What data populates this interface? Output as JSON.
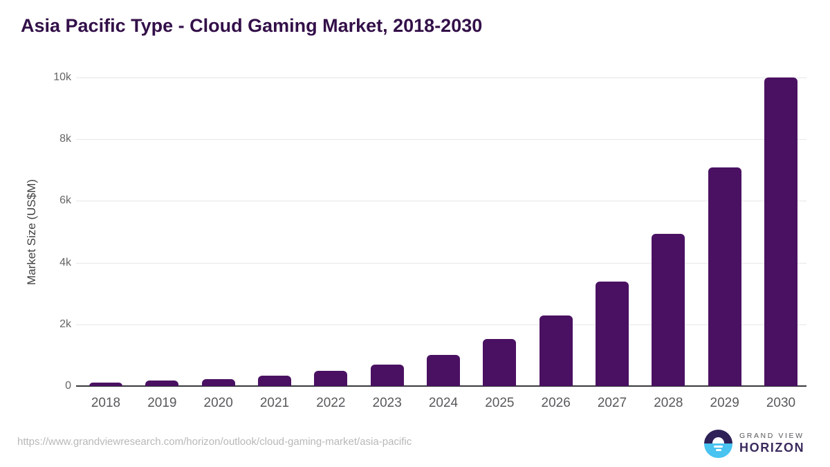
{
  "title": "Asia Pacific Type - Cloud Gaming Market, 2018-2030",
  "chart_data": {
    "type": "bar",
    "title": "Asia Pacific Type - Cloud Gaming Market, 2018-2030",
    "categories": [
      "2018",
      "2019",
      "2020",
      "2021",
      "2022",
      "2023",
      "2024",
      "2025",
      "2026",
      "2027",
      "2028",
      "2029",
      "2030"
    ],
    "values": [
      120,
      170,
      215,
      330,
      490,
      690,
      1020,
      1520,
      2290,
      3380,
      4930,
      7080,
      10000
    ],
    "xlabel": "",
    "ylabel": "Market Size (US$M)",
    "ylim": [
      0,
      10000
    ],
    "yticks": [
      {
        "label": "0",
        "value": 0
      },
      {
        "label": "2k",
        "value": 2000
      },
      {
        "label": "4k",
        "value": 4000
      },
      {
        "label": "6k",
        "value": 6000
      },
      {
        "label": "8k",
        "value": 8000
      },
      {
        "label": "10k",
        "value": 10000
      }
    ],
    "grid": true,
    "legend": false,
    "bar_color": "#4a1162"
  },
  "footer": {
    "source_url": "https://www.grandviewresearch.com/horizon/outlook/cloud-gaming-market/asia-pacific",
    "logo": {
      "top_text": "GRAND VIEW",
      "bottom_text": "HORIZON"
    }
  },
  "colors": {
    "title": "#331049",
    "bar": "#4a1162",
    "axis_line": "#37383c",
    "gridline": "#e7e7e7",
    "y_tick_text": "#666666",
    "x_tick_text": "#58595b",
    "url_text": "#b8b8b8",
    "logo_navy": "#2e2157",
    "logo_blue": "#49c3f0",
    "logo_horizon_text": "#3b2b5e"
  }
}
